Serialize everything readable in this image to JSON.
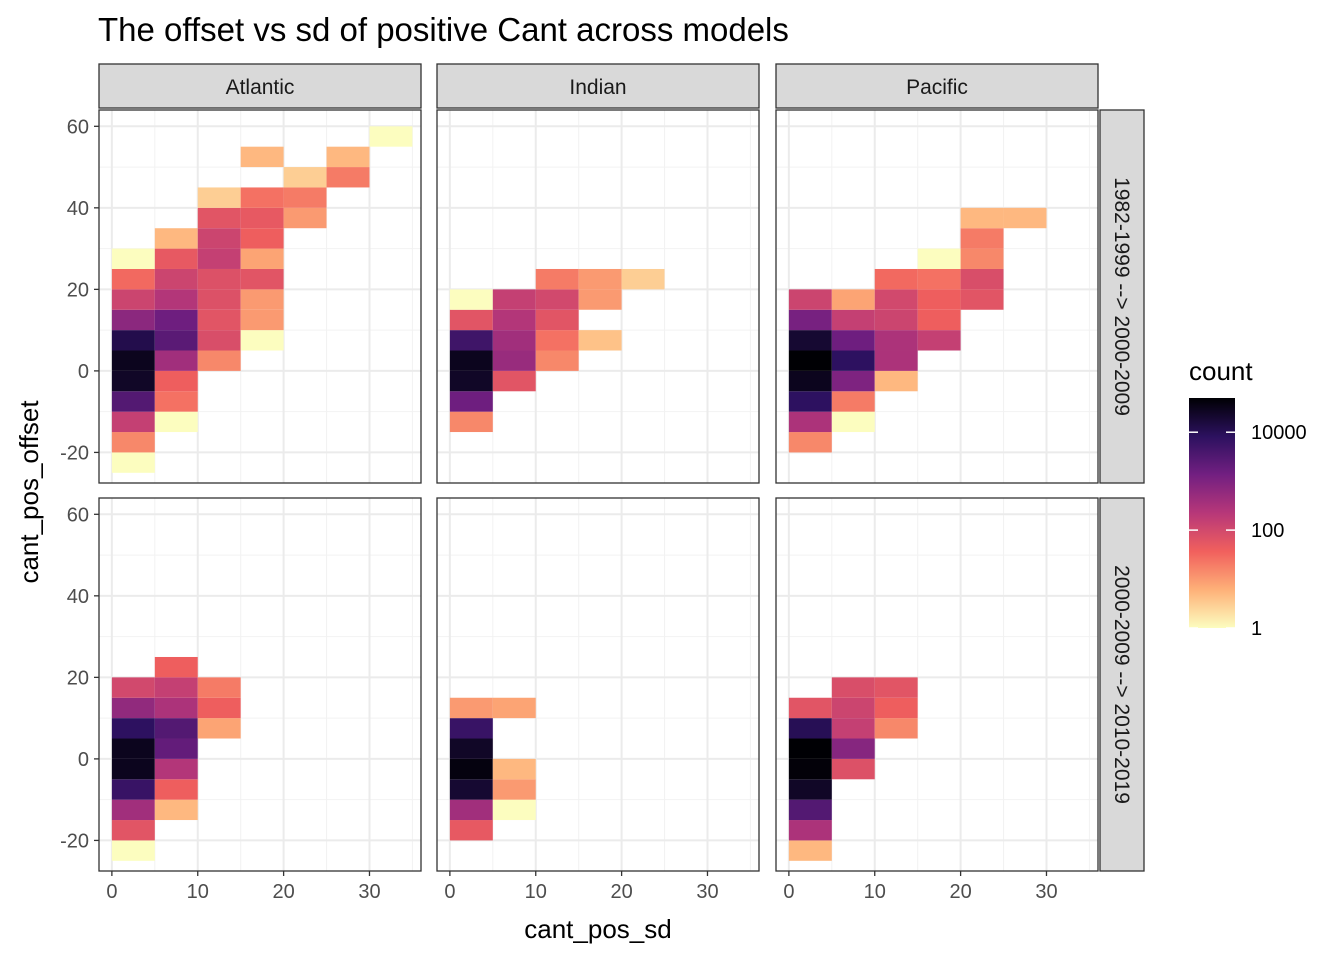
{
  "chart_data": {
    "type": "heatmap",
    "title": "The offset vs sd of positive Cant across models",
    "xlabel": "cant_pos_sd",
    "ylabel": "cant_pos_offset",
    "bin_width_x": 5,
    "bin_width_y": 5,
    "xlim": [
      -1.5,
      36
    ],
    "ylim": [
      -27.5,
      64
    ],
    "x_ticks": [
      0,
      10,
      20,
      30
    ],
    "y_ticks": [
      -20,
      0,
      20,
      40,
      60
    ],
    "columns": [
      "Atlantic",
      "Indian",
      "Pacific"
    ],
    "rows": [
      "1982-1999 --> 2000-2009",
      "2000-2009 --> 2010-2019"
    ],
    "legend": {
      "title": "count",
      "scale": "log10",
      "min": 1,
      "max": 50000,
      "breaks": [
        1,
        100,
        10000
      ],
      "break_labels": [
        "1",
        "100",
        "10000"
      ],
      "palette": [
        "#fcfdbf",
        "#feb078",
        "#f1605d",
        "#b73779",
        "#721f81",
        "#2c115f",
        "#000004"
      ]
    },
    "panels": [
      {
        "column": "Atlantic",
        "row": "1982-1999 --> 2000-2009",
        "bins": [
          {
            "x": 0,
            "y": -25,
            "count": 1
          },
          {
            "x": 0,
            "y": -20,
            "count": 15
          },
          {
            "x": 0,
            "y": -15,
            "count": 150
          },
          {
            "x": 0,
            "y": -10,
            "count": 3000
          },
          {
            "x": 0,
            "y": -5,
            "count": 25000
          },
          {
            "x": 0,
            "y": 0,
            "count": 30000
          },
          {
            "x": 0,
            "y": 5,
            "count": 12000
          },
          {
            "x": 0,
            "y": 10,
            "count": 700
          },
          {
            "x": 0,
            "y": 15,
            "count": 120
          },
          {
            "x": 0,
            "y": 20,
            "count": 30
          },
          {
            "x": 0,
            "y": 25,
            "count": 1
          },
          {
            "x": 5,
            "y": -15,
            "count": 1
          },
          {
            "x": 5,
            "y": -10,
            "count": 25
          },
          {
            "x": 5,
            "y": -5,
            "count": 40
          },
          {
            "x": 5,
            "y": 0,
            "count": 400
          },
          {
            "x": 5,
            "y": 5,
            "count": 2500
          },
          {
            "x": 5,
            "y": 10,
            "count": 1500
          },
          {
            "x": 5,
            "y": 15,
            "count": 250
          },
          {
            "x": 5,
            "y": 20,
            "count": 120
          },
          {
            "x": 5,
            "y": 25,
            "count": 50
          },
          {
            "x": 5,
            "y": 30,
            "count": 5
          },
          {
            "x": 10,
            "y": 0,
            "count": 15
          },
          {
            "x": 10,
            "y": 5,
            "count": 80
          },
          {
            "x": 10,
            "y": 10,
            "count": 60
          },
          {
            "x": 10,
            "y": 15,
            "count": 70
          },
          {
            "x": 10,
            "y": 20,
            "count": 70
          },
          {
            "x": 10,
            "y": 25,
            "count": 150
          },
          {
            "x": 10,
            "y": 30,
            "count": 120
          },
          {
            "x": 10,
            "y": 35,
            "count": 60
          },
          {
            "x": 10,
            "y": 40,
            "count": 3
          },
          {
            "x": 15,
            "y": 5,
            "count": 1
          },
          {
            "x": 15,
            "y": 10,
            "count": 10
          },
          {
            "x": 15,
            "y": 15,
            "count": 10
          },
          {
            "x": 15,
            "y": 20,
            "count": 60
          },
          {
            "x": 15,
            "y": 25,
            "count": 8
          },
          {
            "x": 15,
            "y": 30,
            "count": 40
          },
          {
            "x": 15,
            "y": 35,
            "count": 50
          },
          {
            "x": 15,
            "y": 40,
            "count": 25
          },
          {
            "x": 15,
            "y": 50,
            "count": 5
          },
          {
            "x": 20,
            "y": 35,
            "count": 10
          },
          {
            "x": 20,
            "y": 40,
            "count": 20
          },
          {
            "x": 20,
            "y": 45,
            "count": 3
          },
          {
            "x": 25,
            "y": 45,
            "count": 20
          },
          {
            "x": 25,
            "y": 50,
            "count": 5
          },
          {
            "x": 30,
            "y": 55,
            "count": 1
          }
        ]
      },
      {
        "column": "Indian",
        "row": "1982-1999 --> 2000-2009",
        "bins": [
          {
            "x": 0,
            "y": -15,
            "count": 15
          },
          {
            "x": 0,
            "y": -10,
            "count": 1500
          },
          {
            "x": 0,
            "y": -5,
            "count": 25000
          },
          {
            "x": 0,
            "y": 0,
            "count": 30000
          },
          {
            "x": 0,
            "y": 5,
            "count": 5000
          },
          {
            "x": 0,
            "y": 10,
            "count": 60
          },
          {
            "x": 0,
            "y": 15,
            "count": 1
          },
          {
            "x": 5,
            "y": -5,
            "count": 60
          },
          {
            "x": 5,
            "y": 0,
            "count": 500
          },
          {
            "x": 5,
            "y": 5,
            "count": 400
          },
          {
            "x": 5,
            "y": 10,
            "count": 250
          },
          {
            "x": 5,
            "y": 15,
            "count": 150
          },
          {
            "x": 10,
            "y": 0,
            "count": 15
          },
          {
            "x": 10,
            "y": 5,
            "count": 25
          },
          {
            "x": 10,
            "y": 10,
            "count": 60
          },
          {
            "x": 10,
            "y": 15,
            "count": 100
          },
          {
            "x": 10,
            "y": 20,
            "count": 20
          },
          {
            "x": 15,
            "y": 5,
            "count": 4
          },
          {
            "x": 15,
            "y": 15,
            "count": 10
          },
          {
            "x": 15,
            "y": 20,
            "count": 10
          },
          {
            "x": 20,
            "y": 20,
            "count": 3
          }
        ]
      },
      {
        "column": "Pacific",
        "row": "1982-1999 --> 2000-2009",
        "bins": [
          {
            "x": 0,
            "y": -20,
            "count": 15
          },
          {
            "x": 0,
            "y": -15,
            "count": 300
          },
          {
            "x": 0,
            "y": -10,
            "count": 8000
          },
          {
            "x": 0,
            "y": -5,
            "count": 30000
          },
          {
            "x": 0,
            "y": 0,
            "count": 50000
          },
          {
            "x": 0,
            "y": 5,
            "count": 20000
          },
          {
            "x": 0,
            "y": 10,
            "count": 1200
          },
          {
            "x": 0,
            "y": 15,
            "count": 120
          },
          {
            "x": 5,
            "y": -15,
            "count": 1
          },
          {
            "x": 5,
            "y": -10,
            "count": 20
          },
          {
            "x": 5,
            "y": -5,
            "count": 1000
          },
          {
            "x": 5,
            "y": 0,
            "count": 8000
          },
          {
            "x": 5,
            "y": 5,
            "count": 1500
          },
          {
            "x": 5,
            "y": 10,
            "count": 150
          },
          {
            "x": 5,
            "y": 15,
            "count": 8
          },
          {
            "x": 10,
            "y": -5,
            "count": 5
          },
          {
            "x": 10,
            "y": 0,
            "count": 300
          },
          {
            "x": 10,
            "y": 5,
            "count": 300
          },
          {
            "x": 10,
            "y": 10,
            "count": 120
          },
          {
            "x": 10,
            "y": 15,
            "count": 100
          },
          {
            "x": 10,
            "y": 20,
            "count": 30
          },
          {
            "x": 15,
            "y": 5,
            "count": 150
          },
          {
            "x": 15,
            "y": 10,
            "count": 40
          },
          {
            "x": 15,
            "y": 15,
            "count": 40
          },
          {
            "x": 15,
            "y": 20,
            "count": 25
          },
          {
            "x": 15,
            "y": 25,
            "count": 1
          },
          {
            "x": 20,
            "y": 15,
            "count": 60
          },
          {
            "x": 20,
            "y": 20,
            "count": 80
          },
          {
            "x": 20,
            "y": 25,
            "count": 15
          },
          {
            "x": 20,
            "y": 30,
            "count": 20
          },
          {
            "x": 20,
            "y": 35,
            "count": 5
          },
          {
            "x": 25,
            "y": 35,
            "count": 5
          }
        ]
      },
      {
        "column": "Atlantic",
        "row": "2000-2009 --> 2010-2019",
        "bins": [
          {
            "x": 0,
            "y": -25,
            "count": 1
          },
          {
            "x": 0,
            "y": -20,
            "count": 60
          },
          {
            "x": 0,
            "y": -15,
            "count": 400
          },
          {
            "x": 0,
            "y": -10,
            "count": 6000
          },
          {
            "x": 0,
            "y": -5,
            "count": 30000
          },
          {
            "x": 0,
            "y": 0,
            "count": 30000
          },
          {
            "x": 0,
            "y": 5,
            "count": 8000
          },
          {
            "x": 0,
            "y": 10,
            "count": 600
          },
          {
            "x": 0,
            "y": 15,
            "count": 100
          },
          {
            "x": 5,
            "y": -15,
            "count": 5
          },
          {
            "x": 5,
            "y": -10,
            "count": 40
          },
          {
            "x": 5,
            "y": -5,
            "count": 250
          },
          {
            "x": 5,
            "y": 0,
            "count": 2000
          },
          {
            "x": 5,
            "y": 5,
            "count": 3000
          },
          {
            "x": 5,
            "y": 10,
            "count": 300
          },
          {
            "x": 5,
            "y": 15,
            "count": 150
          },
          {
            "x": 5,
            "y": 20,
            "count": 40
          },
          {
            "x": 10,
            "y": 5,
            "count": 8
          },
          {
            "x": 10,
            "y": 10,
            "count": 40
          },
          {
            "x": 10,
            "y": 15,
            "count": 20
          }
        ]
      },
      {
        "column": "Indian",
        "row": "2000-2009 --> 2010-2019",
        "bins": [
          {
            "x": 0,
            "y": -20,
            "count": 50
          },
          {
            "x": 0,
            "y": -15,
            "count": 400
          },
          {
            "x": 0,
            "y": -10,
            "count": 20000
          },
          {
            "x": 0,
            "y": -5,
            "count": 40000
          },
          {
            "x": 0,
            "y": 0,
            "count": 25000
          },
          {
            "x": 0,
            "y": 5,
            "count": 6000
          },
          {
            "x": 0,
            "y": 10,
            "count": 10
          },
          {
            "x": 5,
            "y": -15,
            "count": 1
          },
          {
            "x": 5,
            "y": -10,
            "count": 10
          },
          {
            "x": 5,
            "y": -5,
            "count": 5
          },
          {
            "x": 5,
            "y": 10,
            "count": 8
          }
        ]
      },
      {
        "column": "Pacific",
        "row": "2000-2009 --> 2010-2019",
        "bins": [
          {
            "x": 0,
            "y": -25,
            "count": 5
          },
          {
            "x": 0,
            "y": -20,
            "count": 300
          },
          {
            "x": 0,
            "y": -15,
            "count": 3000
          },
          {
            "x": 0,
            "y": -10,
            "count": 25000
          },
          {
            "x": 0,
            "y": -5,
            "count": 45000
          },
          {
            "x": 0,
            "y": 0,
            "count": 50000
          },
          {
            "x": 0,
            "y": 5,
            "count": 10000
          },
          {
            "x": 0,
            "y": 10,
            "count": 60
          },
          {
            "x": 5,
            "y": -5,
            "count": 70
          },
          {
            "x": 5,
            "y": 0,
            "count": 800
          },
          {
            "x": 5,
            "y": 5,
            "count": 150
          },
          {
            "x": 5,
            "y": 10,
            "count": 120
          },
          {
            "x": 5,
            "y": 15,
            "count": 80
          },
          {
            "x": 10,
            "y": 5,
            "count": 15
          },
          {
            "x": 10,
            "y": 10,
            "count": 40
          },
          {
            "x": 10,
            "y": 15,
            "count": 60
          }
        ]
      }
    ]
  }
}
